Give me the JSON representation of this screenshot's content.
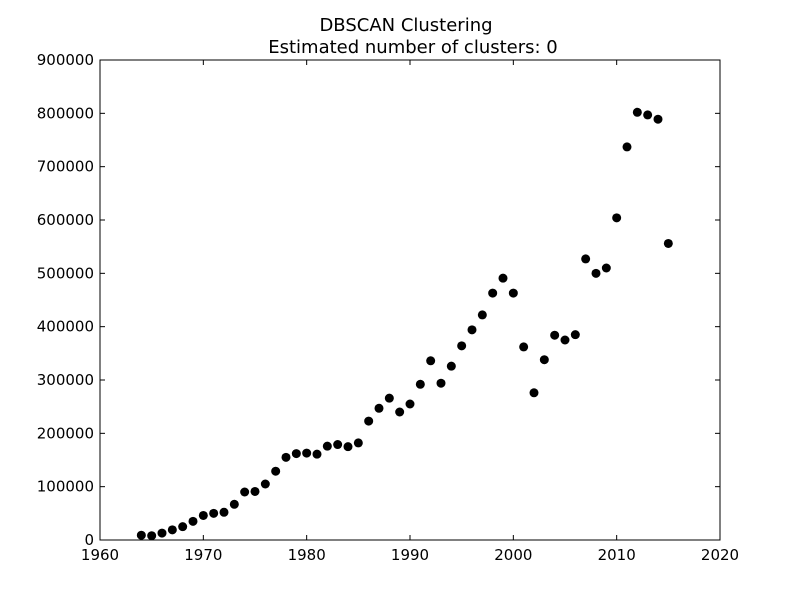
{
  "chart_data": {
    "type": "scatter",
    "title": "DBSCAN Clustering",
    "subtitle": "Estimated number of clusters: 0",
    "xlabel": "",
    "ylabel": "",
    "xlim": [
      1960,
      2020
    ],
    "ylim": [
      0,
      900000
    ],
    "grid": false,
    "xticks": [
      1960,
      1970,
      1980,
      1990,
      2000,
      2010,
      2020
    ],
    "yticks": [
      0,
      100000,
      200000,
      300000,
      400000,
      500000,
      600000,
      700000,
      800000,
      900000
    ],
    "marker_color": "#000000",
    "series": [
      {
        "x": [
          1964,
          1965,
          1966,
          1967,
          1968,
          1969,
          1970,
          1971,
          1972,
          1973,
          1974,
          1975,
          1976,
          1977,
          1978,
          1979,
          1980,
          1981,
          1982,
          1983,
          1984,
          1985,
          1986,
          1987,
          1988,
          1989,
          1990,
          1991,
          1992,
          1993,
          1994,
          1995,
          1996,
          1997,
          1998,
          1999,
          2000,
          2001,
          2002,
          2003,
          2004,
          2005,
          2006,
          2007,
          2008,
          2009,
          2010,
          2011,
          2012,
          2013,
          2014,
          2015
        ],
        "y": [
          9000,
          8000,
          13000,
          19000,
          25000,
          35000,
          46000,
          50000,
          52000,
          67000,
          90000,
          91000,
          105000,
          129000,
          155000,
          162000,
          163000,
          161000,
          176000,
          179000,
          175000,
          182000,
          223000,
          247000,
          266000,
          240000,
          255000,
          292000,
          336000,
          294000,
          326000,
          364000,
          394000,
          422000,
          463000,
          491000,
          463000,
          362000,
          276000,
          338000,
          384000,
          375000,
          385000,
          527000,
          500000,
          510000,
          604000,
          737000,
          802000,
          797000,
          789000,
          556000
        ]
      }
    ]
  }
}
